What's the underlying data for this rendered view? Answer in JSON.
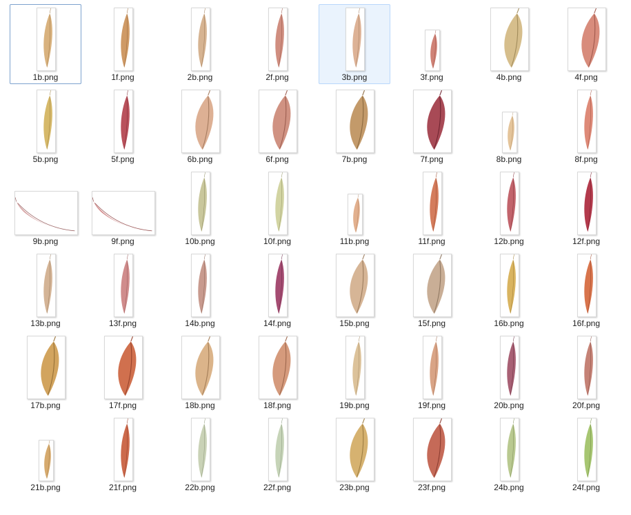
{
  "files": [
    {
      "name": "1b.png",
      "shape": "portrait",
      "color": "#d9b27e",
      "vein": "#a07a48"
    },
    {
      "name": "1f.png",
      "shape": "portrait",
      "color": "#cf9a66",
      "vein": "#9a6a3c"
    },
    {
      "name": "2b.png",
      "shape": "portrait",
      "color": "#d6b391",
      "vein": "#9c7a58"
    },
    {
      "name": "2f.png",
      "shape": "portrait",
      "color": "#d08e80",
      "vein": "#9c5a4c"
    },
    {
      "name": "3b.png",
      "shape": "portrait",
      "color": "#ddb296",
      "vein": "#a07a5c"
    },
    {
      "name": "3f.png",
      "shape": "stub",
      "color": "#cf8276",
      "vein": "#994a42"
    },
    {
      "name": "4b.png",
      "shape": "wide-portrait",
      "color": "#d6be8c",
      "vein": "#a08a5a"
    },
    {
      "name": "4f.png",
      "shape": "wide-portrait",
      "color": "#d88c7c",
      "vein": "#a0584c"
    },
    {
      "name": "5b.png",
      "shape": "portrait",
      "color": "#d6b96a",
      "vein": "#9e8240"
    },
    {
      "name": "5f.png",
      "shape": "portrait",
      "color": "#b9525c",
      "vein": "#7e2a34"
    },
    {
      "name": "6b.png",
      "shape": "wide-portrait",
      "color": "#ddb094",
      "vein": "#a47a5e"
    },
    {
      "name": "6f.png",
      "shape": "wide-portrait",
      "color": "#d09282",
      "vein": "#9c5e50"
    },
    {
      "name": "7b.png",
      "shape": "wide-portrait",
      "color": "#c39a6a",
      "vein": "#8a683e"
    },
    {
      "name": "7f.png",
      "shape": "wide-portrait",
      "color": "#a84a56",
      "vein": "#6e2430"
    },
    {
      "name": "8b.png",
      "shape": "stub",
      "color": "#e4c49a",
      "vein": "#ae8c62"
    },
    {
      "name": "8f.png",
      "shape": "portrait",
      "color": "#de8a78",
      "vein": "#a65646"
    },
    {
      "name": "9b.png",
      "shape": "landscape",
      "color": "#d6a2a2",
      "vein": "#9e6a6a"
    },
    {
      "name": "9f.png",
      "shape": "landscape",
      "color": "#d48c8c",
      "vein": "#9c5a5a"
    },
    {
      "name": "10b.png",
      "shape": "portrait",
      "color": "#c9c79c",
      "vein": "#8e8c64"
    },
    {
      "name": "10f.png",
      "shape": "portrait",
      "color": "#d2d4a2",
      "vein": "#96986a"
    },
    {
      "name": "11b.png",
      "shape": "stub",
      "color": "#e2b08e",
      "vein": "#aa7a5a"
    },
    {
      "name": "11f.png",
      "shape": "portrait",
      "color": "#d47c5c",
      "vein": "#9a4c32"
    },
    {
      "name": "12b.png",
      "shape": "portrait",
      "color": "#c2646c",
      "vein": "#86383e"
    },
    {
      "name": "12f.png",
      "shape": "portrait",
      "color": "#b33a4c",
      "vein": "#7a1c2c"
    },
    {
      "name": "13b.png",
      "shape": "portrait",
      "color": "#d4b496",
      "vein": "#9a7c5e"
    },
    {
      "name": "13f.png",
      "shape": "portrait",
      "color": "#d08c8c",
      "vein": "#985a5a"
    },
    {
      "name": "14b.png",
      "shape": "portrait",
      "color": "#c89a8e",
      "vein": "#8e6a5c"
    },
    {
      "name": "14f.png",
      "shape": "portrait",
      "color": "#a54c72",
      "vein": "#6c2a48"
    },
    {
      "name": "15b.png",
      "shape": "wide-portrait",
      "color": "#d6b596",
      "vein": "#9c7c5e"
    },
    {
      "name": "15f.png",
      "shape": "wide-portrait",
      "color": "#c9ae96",
      "vein": "#8e7660"
    },
    {
      "name": "16b.png",
      "shape": "portrait",
      "color": "#d9b460",
      "vein": "#a07e36"
    },
    {
      "name": "16f.png",
      "shape": "portrait",
      "color": "#d8744c",
      "vein": "#9e462a"
    },
    {
      "name": "17b.png",
      "shape": "wide-portrait",
      "color": "#d2a45e",
      "vein": "#967036"
    },
    {
      "name": "17f.png",
      "shape": "wide-portrait",
      "color": "#d0704e",
      "vein": "#96422c"
    },
    {
      "name": "18b.png",
      "shape": "wide-portrait",
      "color": "#dbb48a",
      "vein": "#a27c56"
    },
    {
      "name": "18f.png",
      "shape": "wide-portrait",
      "color": "#d59a7c",
      "vein": "#9c664c"
    },
    {
      "name": "19b.png",
      "shape": "portrait",
      "color": "#dcc29a",
      "vein": "#a48a64"
    },
    {
      "name": "19f.png",
      "shape": "portrait",
      "color": "#d9a486",
      "vein": "#a06e54"
    },
    {
      "name": "20b.png",
      "shape": "portrait",
      "color": "#a86074",
      "vein": "#6c3444"
    },
    {
      "name": "20f.png",
      "shape": "portrait",
      "color": "#c58276",
      "vein": "#8a4e44"
    },
    {
      "name": "21b.png",
      "shape": "stub",
      "color": "#d6aa6e",
      "vein": "#9c7640"
    },
    {
      "name": "21f.png",
      "shape": "portrait",
      "color": "#cc6a4c",
      "vein": "#923c28"
    },
    {
      "name": "22b.png",
      "shape": "portrait",
      "color": "#c9d2b6",
      "vein": "#8e987c"
    },
    {
      "name": "22f.png",
      "shape": "portrait",
      "color": "#c6d4b8",
      "vein": "#8a9a7e"
    },
    {
      "name": "23b.png",
      "shape": "wide-portrait",
      "color": "#d6b270",
      "vein": "#9c7c42"
    },
    {
      "name": "23f.png",
      "shape": "wide-portrait",
      "color": "#c56a58",
      "vein": "#8a3c30"
    },
    {
      "name": "24b.png",
      "shape": "portrait",
      "color": "#b9c990",
      "vein": "#7e8e5a"
    },
    {
      "name": "24f.png",
      "shape": "portrait",
      "color": "#a7c672",
      "vein": "#6e8c40"
    }
  ],
  "focused_index": 0,
  "selected_index": 4
}
